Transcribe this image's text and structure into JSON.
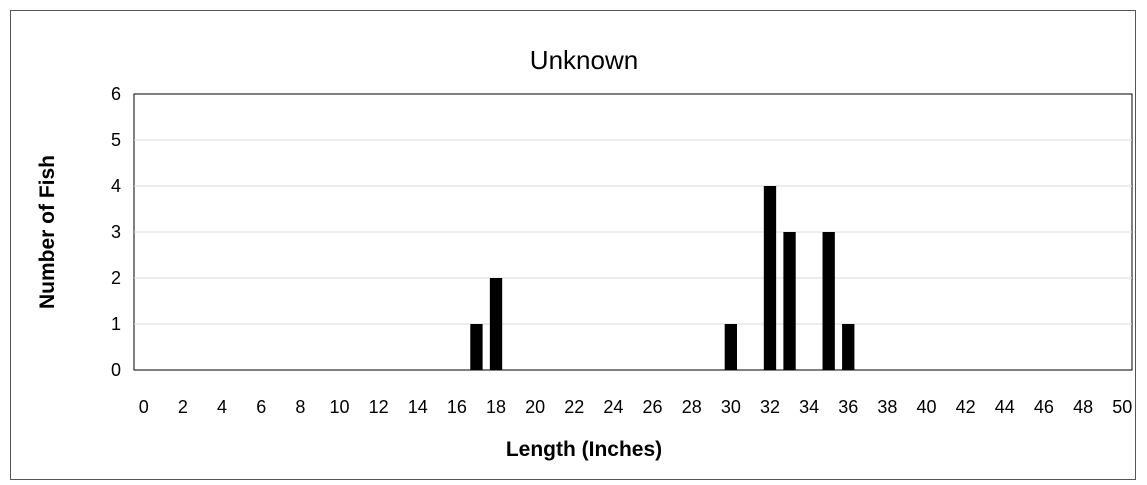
{
  "chart_data": {
    "type": "bar",
    "title": "Unknown",
    "xlabel": "Length (Inches)",
    "ylabel": "Number of Fish",
    "x_tick_labels": [
      "0",
      "2",
      "4",
      "6",
      "8",
      "10",
      "12",
      "14",
      "16",
      "18",
      "20",
      "22",
      "24",
      "26",
      "28",
      "30",
      "32",
      "34",
      "36",
      "38",
      "40",
      "42",
      "44",
      "46",
      "48",
      "50"
    ],
    "y_tick_labels": [
      "0",
      "1",
      "2",
      "3",
      "4",
      "5",
      "6"
    ],
    "xlim": [
      0,
      50
    ],
    "ylim": [
      0,
      6
    ],
    "grid": true,
    "legend": "none",
    "bar_color": "#000000",
    "bars": [
      {
        "x": 17,
        "y": 1
      },
      {
        "x": 18,
        "y": 2
      },
      {
        "x": 30,
        "y": 1
      },
      {
        "x": 32,
        "y": 4
      },
      {
        "x": 33,
        "y": 3
      },
      {
        "x": 35,
        "y": 3
      },
      {
        "x": 36,
        "y": 1
      }
    ]
  }
}
